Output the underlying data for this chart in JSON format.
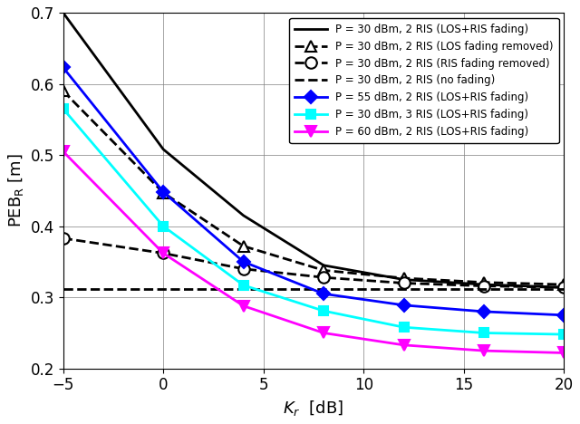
{
  "x": [
    -5,
    0,
    4,
    8,
    12,
    16,
    20
  ],
  "series": {
    "black_solid": {
      "label": "P = 30 dBm, 2 RIS (LOS+RIS fading)",
      "color": "black",
      "linestyle": "-",
      "marker": null,
      "linewidth": 2.0,
      "y": [
        0.7,
        0.508,
        0.415,
        0.345,
        0.325,
        0.318,
        0.314
      ]
    },
    "black_dashed_triangle": {
      "label": "P = 30 dBm, 2 RIS (LOS fading removed)",
      "color": "black",
      "linestyle": "--",
      "marker": "^",
      "markersize": 9,
      "linewidth": 2.0,
      "y": [
        0.59,
        0.447,
        0.372,
        0.338,
        0.327,
        0.321,
        0.318
      ]
    },
    "black_dashed_circle": {
      "label": "P = 30 dBm, 2 RIS (RIS fading removed)",
      "color": "black",
      "linestyle": "--",
      "marker": "o",
      "markersize": 9,
      "linewidth": 2.0,
      "y": [
        0.383,
        0.362,
        0.34,
        0.328,
        0.32,
        0.316,
        0.314
      ]
    },
    "black_dashed_plain": {
      "label": "P = 30 dBm, 2 RIS (no fading)",
      "color": "black",
      "linestyle": "--",
      "marker": null,
      "linewidth": 2.0,
      "y": [
        0.312,
        0.312,
        0.312,
        0.312,
        0.312,
        0.312,
        0.312
      ]
    },
    "blue_solid": {
      "label": "P = 55 dBm, 2 RIS (LOS+RIS fading)",
      "color": "blue",
      "linestyle": "-",
      "marker": "D",
      "markersize": 7,
      "linewidth": 2.0,
      "y": [
        0.623,
        0.448,
        0.35,
        0.305,
        0.289,
        0.28,
        0.275
      ]
    },
    "cyan_solid": {
      "label": "P = 30 dBm, 3 RIS (LOS+RIS fading)",
      "color": "cyan",
      "linestyle": "-",
      "marker": "s",
      "markersize": 7,
      "linewidth": 2.0,
      "y": [
        0.565,
        0.4,
        0.317,
        0.281,
        0.258,
        0.25,
        0.248
      ]
    },
    "magenta_solid": {
      "label": "P = 60 dBm, 2 RIS (LOS+RIS fading)",
      "color": "magenta",
      "linestyle": "-",
      "marker": "v",
      "markersize": 8,
      "linewidth": 2.0,
      "y": [
        0.505,
        0.362,
        0.288,
        0.25,
        0.233,
        0.225,
        0.222
      ]
    }
  },
  "xlabel": "$K_r$  [dB]",
  "ylabel": "PEB$_{\\mathrm{R}}$ [m]",
  "xlim": [
    -5,
    20
  ],
  "ylim": [
    0.2,
    0.7
  ],
  "yticks": [
    0.2,
    0.3,
    0.4,
    0.5,
    0.6,
    0.7
  ],
  "xticks": [
    -5,
    0,
    5,
    10,
    15,
    20
  ],
  "grid": true,
  "background_color": "#ffffff",
  "figsize": [
    6.4,
    4.68
  ],
  "dpi": 100
}
